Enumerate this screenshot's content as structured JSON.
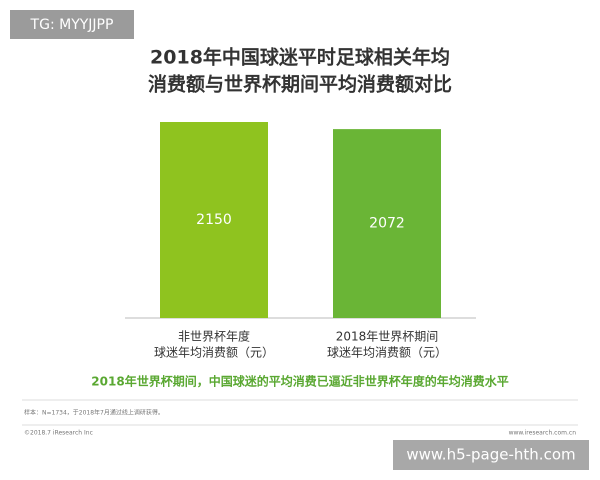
{
  "chart_data": {
    "type": "bar",
    "title": [
      "2018年中国球迷平时足球相关年均",
      "消费额与世界杯期间平均消费额对比"
    ],
    "categories": [
      [
        "非世界杯年度",
        "球迷年均消费额（元）"
      ],
      [
        "2018年世界杯期间",
        "球迷年均消费额（元）"
      ]
    ],
    "values": [
      2150,
      2072
    ],
    "colors": [
      "#8fc31f",
      "#6ab536"
    ],
    "subtitle": "2018年世界杯期间，中国球迷的平均消费已逼近非世界杯年度的年均消费水平"
  },
  "footer": {
    "note": "样本：N=1734，于2018年7月通过线上调研获得。",
    "copyright": "©2018.7 iResearch Inc",
    "site": "www.iresearch.com.cn"
  },
  "overlays": {
    "top_left": "TG: MYYJJPP",
    "bottom_right": "www.h5-page-hth.com"
  }
}
